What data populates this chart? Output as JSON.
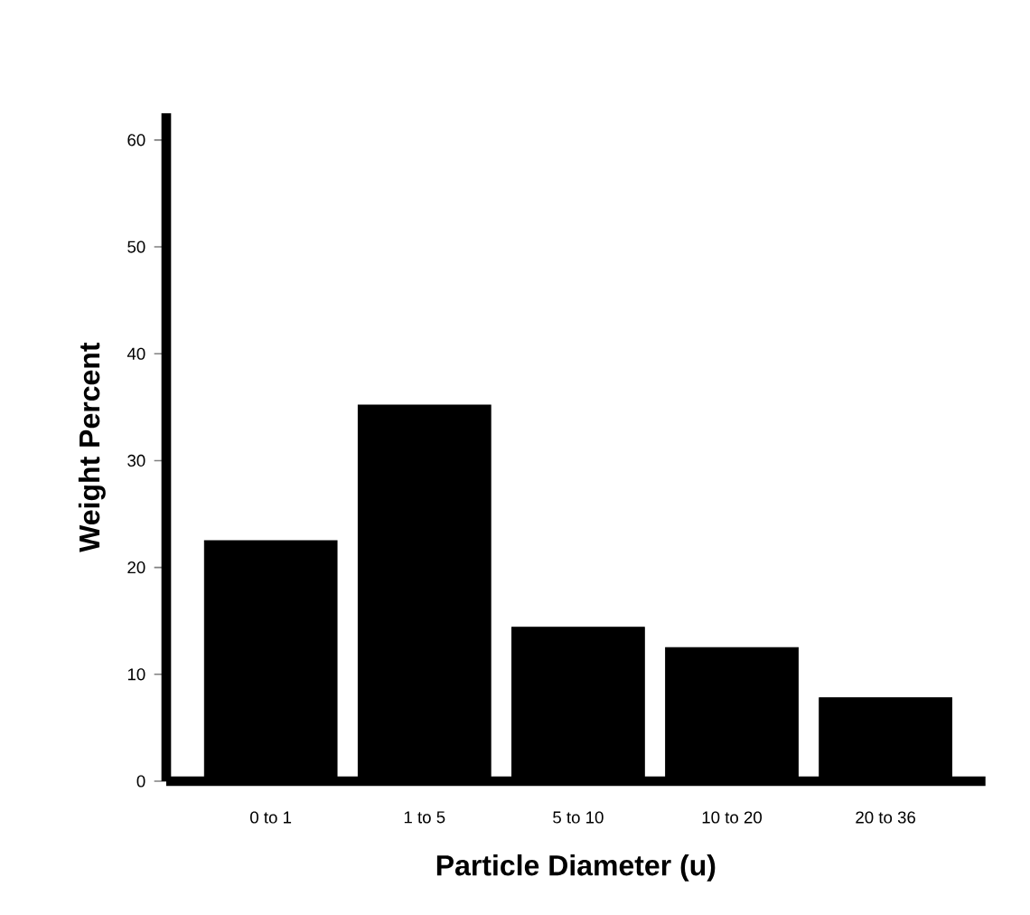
{
  "chart_data": {
    "type": "bar",
    "categories": [
      "0 to 1",
      "1 to 5",
      "5 to 10",
      "10 to 20",
      "20 to 36"
    ],
    "values": [
      22.5,
      35.2,
      14.4,
      12.5,
      7.8
    ],
    "color": "#000000",
    "xlabel": "Particle Diameter (u)",
    "ylabel": "Weight Percent",
    "ylim": [
      0,
      62.5
    ],
    "yticks": [
      0,
      10,
      20,
      30,
      40,
      50,
      60
    ],
    "grid": false
  }
}
